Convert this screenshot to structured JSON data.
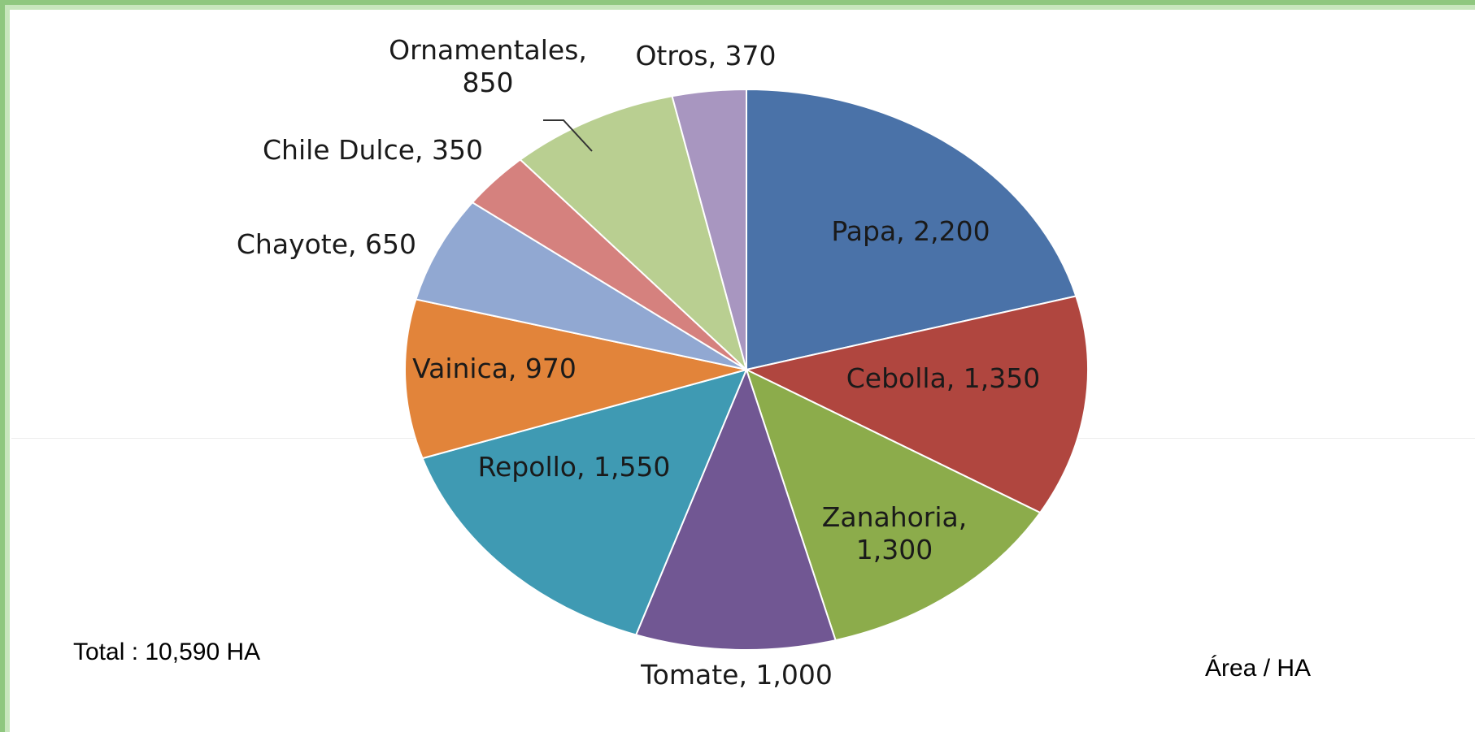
{
  "chart_data": {
    "type": "pie",
    "title": "",
    "slices": [
      {
        "name": "Papa",
        "value": 2200,
        "label_lines": [
          "Papa, 2,200"
        ],
        "color": "#4a72a8"
      },
      {
        "name": "Cebolla",
        "value": 1350,
        "label_lines": [
          "Cebolla, 1,350"
        ],
        "color": "#b0463f"
      },
      {
        "name": "Zanahoria",
        "value": 1300,
        "label_lines": [
          "Zanahoria,",
          "1,300"
        ],
        "color": "#8cac4b"
      },
      {
        "name": "Tomate",
        "value": 1000,
        "label_lines": [
          "Tomate, 1,000"
        ],
        "color": "#715793"
      },
      {
        "name": "Repollo",
        "value": 1550,
        "label_lines": [
          "Repollo, 1,550"
        ],
        "color": "#3f9ab3"
      },
      {
        "name": "Vainica",
        "value": 970,
        "label_lines": [
          "Vainica, 970"
        ],
        "color": "#e2843a"
      },
      {
        "name": "Chayote",
        "value": 650,
        "label_lines": [
          "Chayote, 650"
        ],
        "color": "#91a8d2"
      },
      {
        "name": "Chile Dulce",
        "value": 350,
        "label_lines": [
          "Chile Dulce, 350"
        ],
        "color": "#d5817e"
      },
      {
        "name": "Ornamentales",
        "value": 850,
        "label_lines": [
          "Ornamentales,",
          "850"
        ],
        "color": "#b9cf91"
      },
      {
        "name": "Otros",
        "value": 370,
        "label_lines": [
          "Otros, 370"
        ],
        "color": "#a896c0"
      }
    ],
    "start_angle": "12 o'clock",
    "direction": "clockwise"
  },
  "notes": {
    "total": "Total : 10,590 HA",
    "unit": "Área  / HA"
  },
  "colors": {
    "frame": "#8fc77f"
  }
}
